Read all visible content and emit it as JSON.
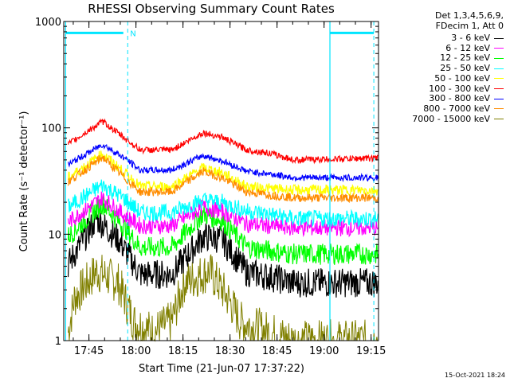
{
  "chart_data": {
    "type": "line",
    "title": "RHESSI Observing Summary Count Rates",
    "xlabel": "Start Time (21-Jun-07 17:37:22)",
    "ylabel": "Count Rate (s⁻¹ detector⁻¹)",
    "yscale": "log",
    "ylim": [
      1,
      1000
    ],
    "y_ticks": [
      "1",
      "10",
      "100",
      "1000"
    ],
    "x_range_minutes": [
      -0.4,
      100.0
    ],
    "x_ticks": [
      "17:45",
      "18:00",
      "18:15",
      "18:30",
      "18:45",
      "19:00",
      "19:15"
    ],
    "legend_header": [
      "Det 1,3,4,5,6,9,",
      "FDecim 1, Att 0"
    ],
    "series": [
      {
        "name": "3 - 6 keV",
        "color": "#000000",
        "x": [
          1.0,
          10.0,
          17.0,
          24.0,
          34.0,
          44.0,
          50.0,
          58.0,
          65.0,
          73.0,
          100.0
        ],
        "y": [
          5.2,
          14.0,
          9.0,
          4.2,
          4.2,
          9.5,
          9.0,
          4.4,
          4.0,
          3.5,
          3.5
        ]
      },
      {
        "name": "6 - 12 keV",
        "color": "#ff00ff",
        "x": [
          1.0,
          12.0,
          19.0,
          24.0,
          34.0,
          44.0,
          50.0,
          58.0,
          65.0,
          73.0,
          100.0
        ],
        "y": [
          13.0,
          22.0,
          15.0,
          12.0,
          12.0,
          18.0,
          16.5,
          12.5,
          12.0,
          11.5,
          11.5
        ]
      },
      {
        "name": "12 - 25 keV",
        "color": "#00ff00",
        "x": [
          1.0,
          12.0,
          19.0,
          24.0,
          34.0,
          44.0,
          50.0,
          58.0,
          65.0,
          73.0,
          100.0
        ],
        "y": [
          9.5,
          19.5,
          11.5,
          7.5,
          7.5,
          15.5,
          13.5,
          7.5,
          7.0,
          6.5,
          6.5
        ]
      },
      {
        "name": "25 - 50 keV",
        "color": "#00ffff",
        "x": [
          1.0,
          12.0,
          19.0,
          24.0,
          34.0,
          44.0,
          50.0,
          58.0,
          65.0,
          73.0,
          100.0
        ],
        "y": [
          18.0,
          29.0,
          21.5,
          16.0,
          16.0,
          21.0,
          20.0,
          16.5,
          15.5,
          14.0,
          14.0
        ]
      },
      {
        "name": "50 - 100 keV",
        "color": "#ffff00",
        "x": [
          1.0,
          12.0,
          19.0,
          24.0,
          34.0,
          44.0,
          50.0,
          58.0,
          65.0,
          73.0,
          100.0
        ],
        "y": [
          34.0,
          57.0,
          38.0,
          28.0,
          28.0,
          42.0,
          38.0,
          28.0,
          27.0,
          26.0,
          26.0
        ]
      },
      {
        "name": "100 - 300 keV",
        "color": "#ff0000",
        "x": [
          1.0,
          12.0,
          19.0,
          24.0,
          34.0,
          44.0,
          50.0,
          58.0,
          65.0,
          73.0,
          100.0
        ],
        "y": [
          70.0,
          115.0,
          80.0,
          62.0,
          62.0,
          90.0,
          82.0,
          62.0,
          58.0,
          50.0,
          52.0
        ]
      },
      {
        "name": "300 - 800 keV",
        "color": "#0000ff",
        "x": [
          1.0,
          12.0,
          19.0,
          24.0,
          34.0,
          44.0,
          50.0,
          58.0,
          65.0,
          73.0,
          100.0
        ],
        "y": [
          45.0,
          70.0,
          52.0,
          40.0,
          40.0,
          55.0,
          49.0,
          39.0,
          37.0,
          34.0,
          34.0
        ]
      },
      {
        "name": "800 - 7000 keV",
        "color": "#ff8c00",
        "x": [
          1.0,
          12.0,
          19.0,
          24.0,
          34.0,
          44.0,
          50.0,
          58.0,
          65.0,
          73.0,
          100.0
        ],
        "y": [
          31.0,
          53.0,
          34.0,
          25.0,
          25.0,
          39.0,
          34.0,
          25.0,
          23.5,
          22.0,
          22.0
        ]
      },
      {
        "name": "7000 - 15000 keV",
        "color": "#808000",
        "x": [
          1.0,
          3.0,
          10.0,
          17.0,
          22.0,
          28.0,
          34.0,
          38.0,
          46.0,
          52.0,
          56.0,
          65.0,
          73.0,
          100.0
        ],
        "y": [
          1.2,
          2.5,
          4.5,
          3.5,
          1.5,
          1.2,
          1.5,
          3.5,
          4.5,
          2.5,
          1.5,
          1.2,
          1.0,
          1.0
        ]
      }
    ]
  },
  "overlays": {
    "marker_label": "N",
    "footer_date": "15-Oct-2021 18:24"
  }
}
